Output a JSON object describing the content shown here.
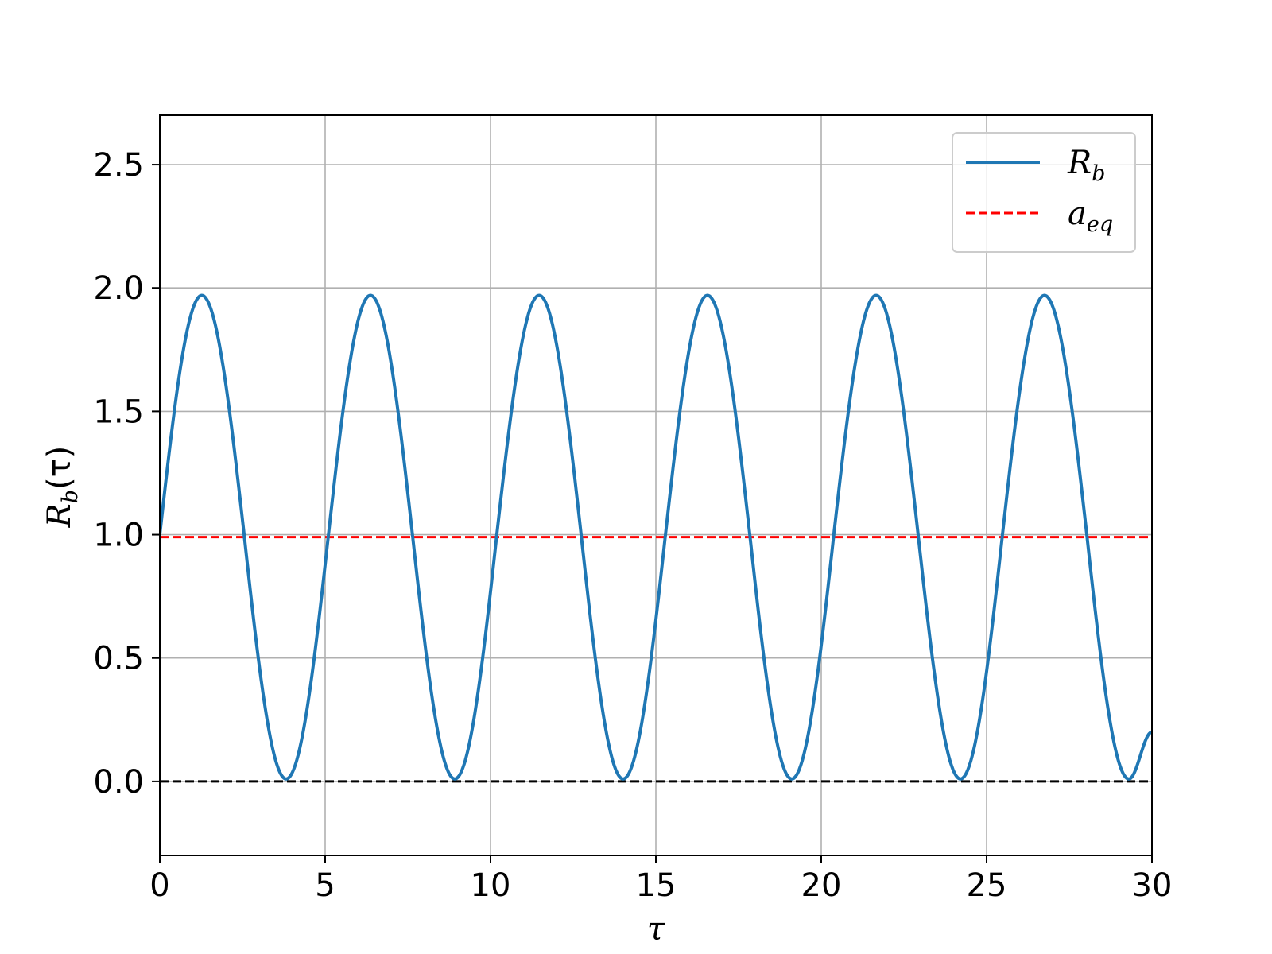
{
  "chart_data": {
    "type": "line",
    "title": "",
    "xlabel": "τ",
    "ylabel": {
      "main": "R",
      "sub": "b",
      "arg": "(τ)"
    },
    "xlim": [
      0,
      30
    ],
    "ylim": [
      -0.3,
      2.7
    ],
    "xticks": [
      0,
      5,
      10,
      15,
      20,
      25,
      30
    ],
    "xtick_labels": [
      "0",
      "5",
      "10",
      "15",
      "20",
      "25",
      "30"
    ],
    "yticks": [
      0.0,
      0.5,
      1.0,
      1.5,
      2.0,
      2.5
    ],
    "ytick_labels": [
      "0.0",
      "0.5",
      "1.0",
      "1.5",
      "2.0",
      "2.5"
    ],
    "grid": true,
    "legend_position": "top-right",
    "series": [
      {
        "name": "R_b",
        "legend": {
          "main": "R",
          "sub": "b"
        },
        "style": "solid",
        "color": "#1f77b4",
        "x": [
          0,
          1.27,
          2.55,
          3.82,
          5.1,
          6.37,
          7.64,
          8.92,
          10.19,
          11.47,
          12.74,
          14.01,
          15.29,
          16.56,
          17.84,
          19.11,
          20.38,
          21.66,
          22.93,
          24.21,
          25.48,
          26.75,
          28.03,
          29.3,
          30
        ],
        "y": [
          1.0,
          1.97,
          1.0,
          0.01,
          1.0,
          1.97,
          1.0,
          0.01,
          1.0,
          1.97,
          1.0,
          0.01,
          1.0,
          1.97,
          1.0,
          0.01,
          1.0,
          1.97,
          1.0,
          0.01,
          1.0,
          1.97,
          1.0,
          0.01,
          0.2
        ]
      },
      {
        "name": "a_eq",
        "legend": {
          "main": "a",
          "sub": "eq"
        },
        "style": "dashed",
        "color": "#ff0000",
        "x": [
          0,
          30
        ],
        "y": [
          0.99,
          0.99
        ]
      },
      {
        "name": "",
        "style": "dashed",
        "color": "#000000",
        "x": [
          0,
          30
        ],
        "y": [
          0.0,
          0.0
        ]
      }
    ]
  }
}
